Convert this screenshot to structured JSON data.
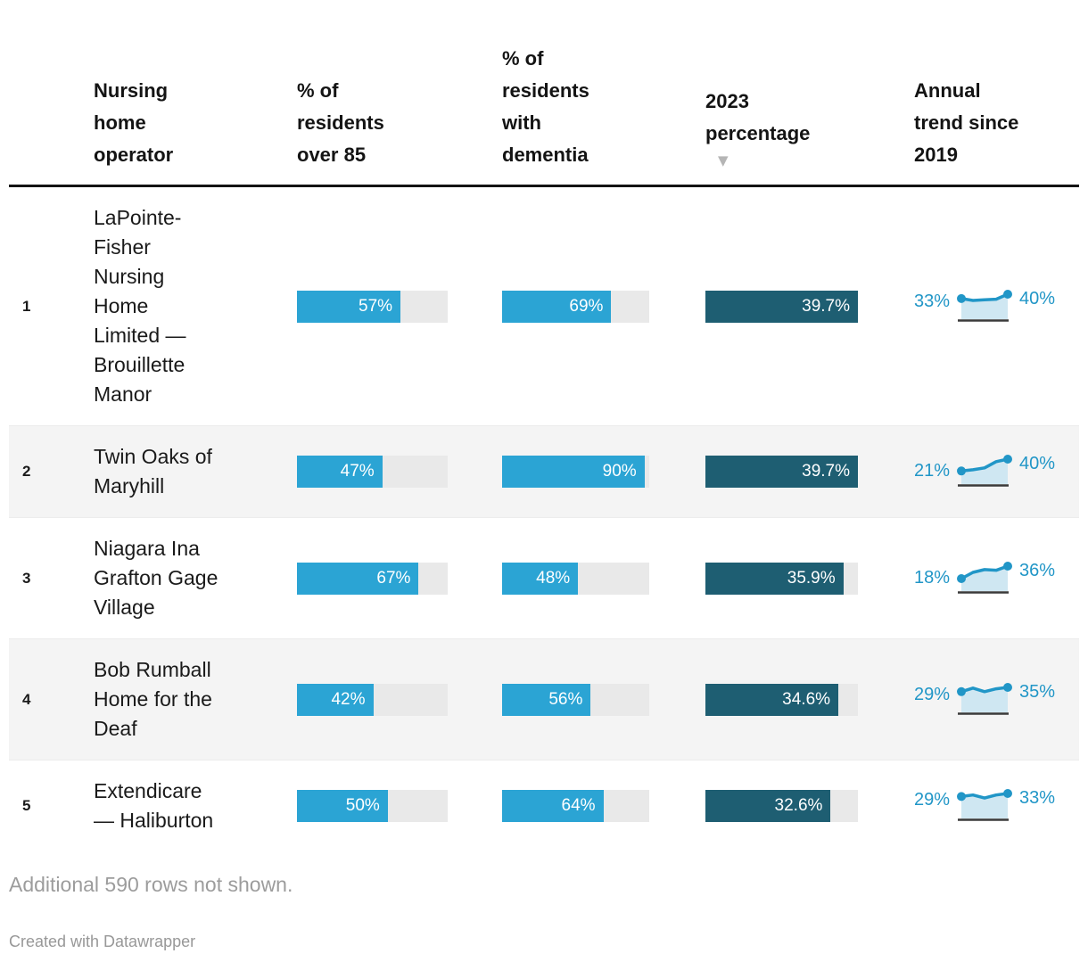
{
  "table": {
    "columns": [
      {
        "id": "rank",
        "label": ""
      },
      {
        "id": "operator",
        "label": "Nursing\nhome\noperator"
      },
      {
        "id": "over85",
        "label": "% of\nresidents\nover 85"
      },
      {
        "id": "dementia",
        "label": "% of\nresidents\nwith\ndementia"
      },
      {
        "id": "pct2023",
        "label": "2023\npercentage",
        "sort_direction": "descending",
        "sort_icon": "▼"
      },
      {
        "id": "trend",
        "label": "Annual\ntrend since\n2019"
      }
    ]
  },
  "bar_scales": {
    "over85_max": 83,
    "dementia_max": 93,
    "pct2023_max": 39.7
  },
  "rows": [
    {
      "rank": "1",
      "operator": "LaPointe-\nFisher\nNursing\nHome\nLimited —\nBrouillette\nManor",
      "over85": 57,
      "over85_label": "57%",
      "dementia": 69,
      "dementia_label": "69%",
      "pct2023": 39.7,
      "pct2023_label": "39.7%",
      "trend": {
        "start_label": "33%",
        "end_label": "40%",
        "values": [
          33,
          30,
          31,
          32,
          40
        ]
      }
    },
    {
      "rank": "2",
      "operator": "Twin Oaks of\nMaryhill",
      "over85": 47,
      "over85_label": "47%",
      "dementia": 90,
      "dementia_label": "90%",
      "pct2023": 39.7,
      "pct2023_label": "39.7%",
      "trend": {
        "start_label": "21%",
        "end_label": "40%",
        "values": [
          21,
          23,
          26,
          36,
          40
        ]
      }
    },
    {
      "rank": "3",
      "operator": "Niagara Ina\nGrafton Gage\nVillage",
      "over85": 67,
      "over85_label": "67%",
      "dementia": 48,
      "dementia_label": "48%",
      "pct2023": 35.9,
      "pct2023_label": "35.9%",
      "trend": {
        "start_label": "18%",
        "end_label": "36%",
        "values": [
          18,
          27,
          31,
          30,
          36
        ]
      }
    },
    {
      "rank": "4",
      "operator": "Bob Rumball\nHome for the\nDeaf",
      "over85": 42,
      "over85_label": "42%",
      "dementia": 56,
      "dementia_label": "56%",
      "pct2023": 34.6,
      "pct2023_label": "34.6%",
      "trend": {
        "start_label": "29%",
        "end_label": "35%",
        "values": [
          29,
          34,
          29,
          33,
          35
        ]
      }
    },
    {
      "rank": "5",
      "operator": "Extendicare\n— Haliburton",
      "over85": 50,
      "over85_label": "50%",
      "dementia": 64,
      "dementia_label": "64%",
      "pct2023": 32.6,
      "pct2023_label": "32.6%",
      "trend": {
        "start_label": "29%",
        "end_label": "33%",
        "values": [
          29,
          31,
          27,
          31,
          33
        ]
      }
    }
  ],
  "footer": {
    "note": "Additional 590 rows not shown.",
    "credit": "Created with Datawrapper"
  },
  "colors": {
    "bar_blue": "#2ba4d4",
    "bar_teal": "#1e5e72",
    "bar_track": "#e9e9e9",
    "row_stripe": "#f4f4f4",
    "trend_line": "#2196c7",
    "trend_area": "#cfe7f2",
    "trend_baseline": "#3a3a3a",
    "sort_arrow": "#b5b5b5",
    "header_border": "#141414"
  },
  "chart_data": {
    "type": "table",
    "title": "",
    "sorted_by": "2023 percentage (descending)",
    "columns": [
      "Rank",
      "Nursing home operator",
      "% of residents over 85",
      "% of residents with dementia",
      "2023 percentage",
      "Annual trend since 2019"
    ],
    "rows": [
      {
        "rank": 1,
        "operator": "LaPointe-Fisher Nursing Home Limited — Brouillette Manor",
        "over85_pct": 57,
        "dementia_pct": 69,
        "pct_2023": 39.7,
        "trend_2019_2023": [
          33,
          30,
          31,
          32,
          40
        ]
      },
      {
        "rank": 2,
        "operator": "Twin Oaks of Maryhill",
        "over85_pct": 47,
        "dementia_pct": 90,
        "pct_2023": 39.7,
        "trend_2019_2023": [
          21,
          23,
          26,
          36,
          40
        ]
      },
      {
        "rank": 3,
        "operator": "Niagara Ina Grafton Gage Village",
        "over85_pct": 67,
        "dementia_pct": 48,
        "pct_2023": 35.9,
        "trend_2019_2023": [
          18,
          27,
          31,
          30,
          36
        ]
      },
      {
        "rank": 4,
        "operator": "Bob Rumball Home for the Deaf",
        "over85_pct": 42,
        "dementia_pct": 56,
        "pct_2023": 34.6,
        "trend_2019_2023": [
          29,
          34,
          29,
          33,
          35
        ]
      },
      {
        "rank": 5,
        "operator": "Extendicare — Haliburton",
        "over85_pct": 50,
        "dementia_pct": 64,
        "pct_2023": 32.6,
        "trend_2019_2023": [
          29,
          31,
          27,
          31,
          33
        ]
      }
    ],
    "note": "Additional 590 rows not shown."
  }
}
